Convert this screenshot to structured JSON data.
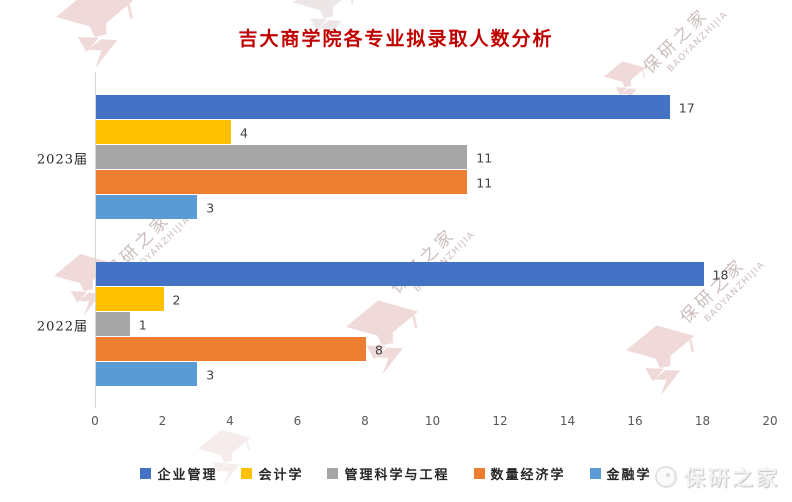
{
  "title": "吉大商学院各专业拟录取人数分析",
  "watermark": {
    "cn": "保研之家",
    "en": "BAOYANZHIJIA"
  },
  "brand": {
    "name": "保研之家"
  },
  "chart_data": {
    "type": "bar",
    "orientation": "horizontal",
    "title": "吉大商学院各专业拟录取人数分析",
    "title_color": "#C00000",
    "categories": [
      "2023届",
      "2022届"
    ],
    "series": [
      {
        "name": "企业管理",
        "color": "#4472C4",
        "values": [
          17,
          18
        ]
      },
      {
        "name": "会计学",
        "color": "#FFC000",
        "values": [
          4,
          2
        ]
      },
      {
        "name": "管理科学与工程",
        "color": "#A5A5A5",
        "values": [
          11,
          1
        ]
      },
      {
        "name": "数量经济学",
        "color": "#ED7D31",
        "values": [
          11,
          8
        ]
      },
      {
        "name": "金融学",
        "color": "#5B9BD5",
        "values": [
          3,
          3
        ]
      }
    ],
    "xlim": [
      0,
      20
    ],
    "x_ticks": [
      0,
      2,
      4,
      6,
      8,
      10,
      12,
      14,
      16,
      18,
      20
    ],
    "data_labels": true,
    "gridlines": false,
    "legend_position": "bottom"
  }
}
